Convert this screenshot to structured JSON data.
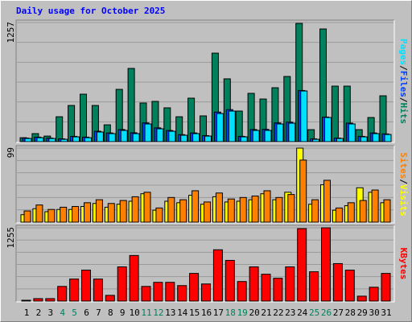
{
  "title": "Daily usage for October 2025",
  "separator": "/",
  "chart_data": [
    {
      "type": "bar",
      "ylim": [
        0,
        1257
      ],
      "yticks": [
        1257
      ],
      "series": [
        {
          "name": "Hits",
          "color": "#00805c",
          "values": [
            42,
            85,
            59,
            263,
            382,
            501,
            382,
            178,
            552,
            773,
            408,
            425,
            357,
            263,
            459,
            272,
            934,
            663,
            323,
            510,
            450,
            569,
            688,
            1248,
            127,
            1189,
            586,
            586,
            127,
            255,
            484
          ]
        },
        {
          "name": "Files",
          "color": "#0040ff",
          "values": [
            38,
            48,
            38,
            30,
            56,
            48,
            110,
            92,
            128,
            94,
            198,
            146,
            118,
            74,
            92,
            64,
            312,
            338,
            56,
            128,
            130,
            198,
            206,
            540,
            30,
            260,
            38,
            196,
            56,
            92,
            82
          ]
        },
        {
          "name": "Pages",
          "color": "#00e0ff",
          "values": [
            34,
            42,
            34,
            25,
            51,
            42,
            102,
            85,
            119,
            85,
            187,
            136,
            110,
            68,
            85,
            59,
            297,
            323,
            51,
            119,
            119,
            187,
            195,
            535,
            25,
            255,
            34,
            187,
            51,
            85,
            76
          ]
        }
      ]
    },
    {
      "type": "bar",
      "ylim": [
        0,
        99
      ],
      "yticks": [
        99
      ],
      "series": [
        {
          "name": "Visits",
          "color": "#ffff00",
          "values": [
            10,
            18,
            14,
            17,
            17,
            21,
            25,
            20,
            24,
            28,
            38,
            16,
            28,
            26,
            36,
            24,
            34,
            27,
            28,
            30,
            38,
            30,
            40,
            99,
            24,
            50,
            16,
            22,
            46,
            40,
            26
          ]
        },
        {
          "name": "Sites",
          "color": "#ff8000",
          "values": [
            15,
            23,
            17,
            20,
            21,
            26,
            30,
            25,
            29,
            34,
            40,
            19,
            33,
            30,
            42,
            27,
            39,
            31,
            33,
            35,
            42,
            33,
            37,
            83,
            30,
            56,
            19,
            26,
            29,
            43,
            30
          ]
        }
      ]
    },
    {
      "type": "bar",
      "ylim": [
        0,
        1255
      ],
      "yticks": [
        1255
      ],
      "categories": [
        "1",
        "2",
        "3",
        "4",
        "5",
        "6",
        "7",
        "8",
        "9",
        "10",
        "11",
        "12",
        "13",
        "14",
        "15",
        "16",
        "17",
        "18",
        "19",
        "20",
        "21",
        "22",
        "23",
        "24",
        "25",
        "26",
        "27",
        "28",
        "29",
        "30",
        "31"
      ],
      "category_colors": [
        "#000000",
        "#000000",
        "#000000",
        "#00805c",
        "#00805c",
        "#000000",
        "#000000",
        "#000000",
        "#000000",
        "#000000",
        "#00805c",
        "#00805c",
        "#000000",
        "#000000",
        "#000000",
        "#000000",
        "#000000",
        "#00805c",
        "#00805c",
        "#000000",
        "#000000",
        "#000000",
        "#000000",
        "#000000",
        "#00805c",
        "#00805c",
        "#000000",
        "#000000",
        "#000000",
        "#000000",
        "#000000"
      ],
      "series": [
        {
          "name": "KBytes",
          "color": "#ff0000",
          "values": [
            14,
            42,
            42,
            251,
            377,
            530,
            377,
            98,
            586,
            781,
            251,
            321,
            321,
            265,
            474,
            293,
            879,
            697,
            335,
            586,
            460,
            391,
            586,
            1241,
            502,
            1255,
            642,
            530,
            84,
            237,
            474
          ]
        }
      ]
    }
  ]
}
